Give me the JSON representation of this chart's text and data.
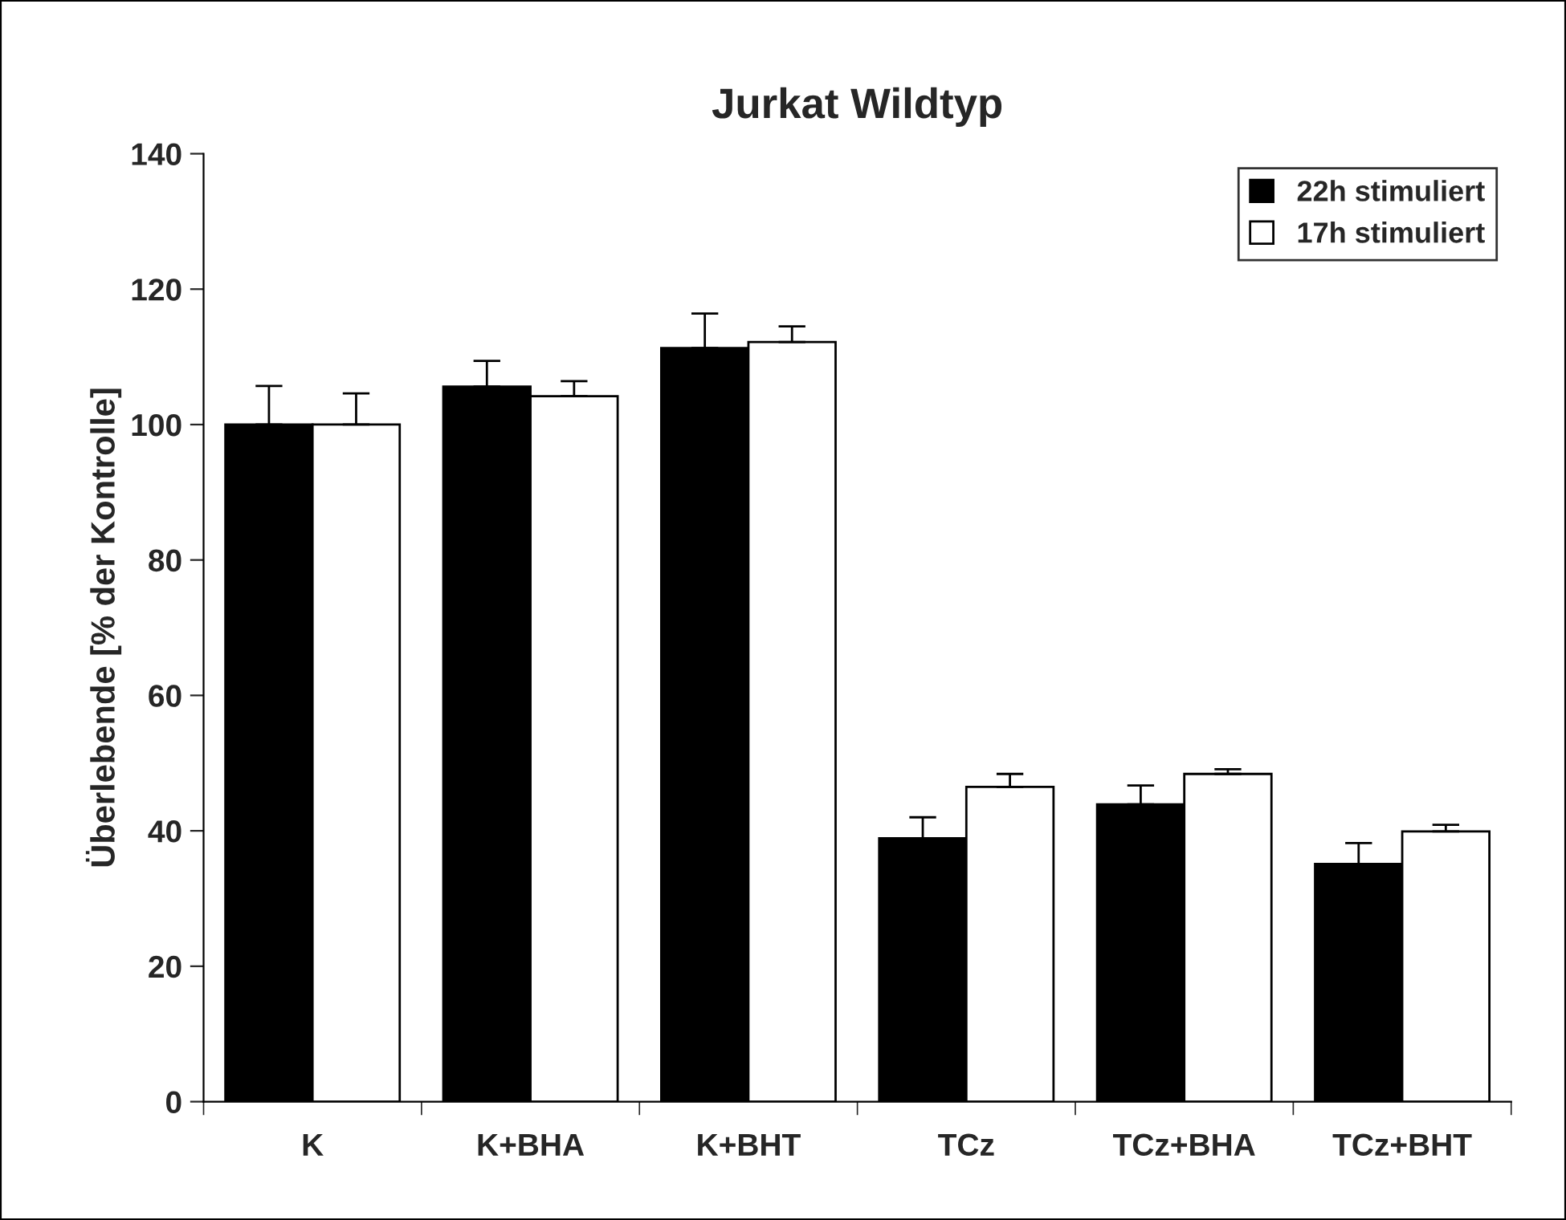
{
  "chart_data": {
    "type": "bar",
    "title": "Jurkat Wildtyp",
    "ylabel": "Überlebende [% der Kontrolle]",
    "categories": [
      "K",
      "K+BHA",
      "K+BHT",
      "TCz",
      "TCz+BHA",
      "TCz+BHT"
    ],
    "series": [
      {
        "name": "22h stimuliert",
        "color": "#000000",
        "values": [
          100,
          105.6,
          111.3,
          38.9,
          43.9,
          35.1
        ],
        "errors": [
          [
            100,
            105.7
          ],
          [
            105.6,
            109.4
          ],
          [
            111.3,
            116.4
          ],
          [
            38.9,
            42.0
          ],
          [
            43.9,
            46.7
          ],
          [
            35.1,
            38.2
          ]
        ]
      },
      {
        "name": "17h stimuliert",
        "color": "#ffffff",
        "values": [
          100,
          104.2,
          112.2,
          46.5,
          48.4,
          39.9
        ],
        "errors": [
          [
            100,
            104.6
          ],
          [
            104.2,
            106.4
          ],
          [
            112.2,
            114.5
          ],
          [
            46.5,
            48.4
          ],
          [
            48.4,
            49.1
          ],
          [
            39.9,
            40.9
          ]
        ]
      }
    ],
    "ylim": [
      0,
      140
    ],
    "yticks": [
      0,
      20,
      40,
      60,
      80,
      100,
      120,
      140
    ],
    "grid": false,
    "legend": "top right"
  }
}
